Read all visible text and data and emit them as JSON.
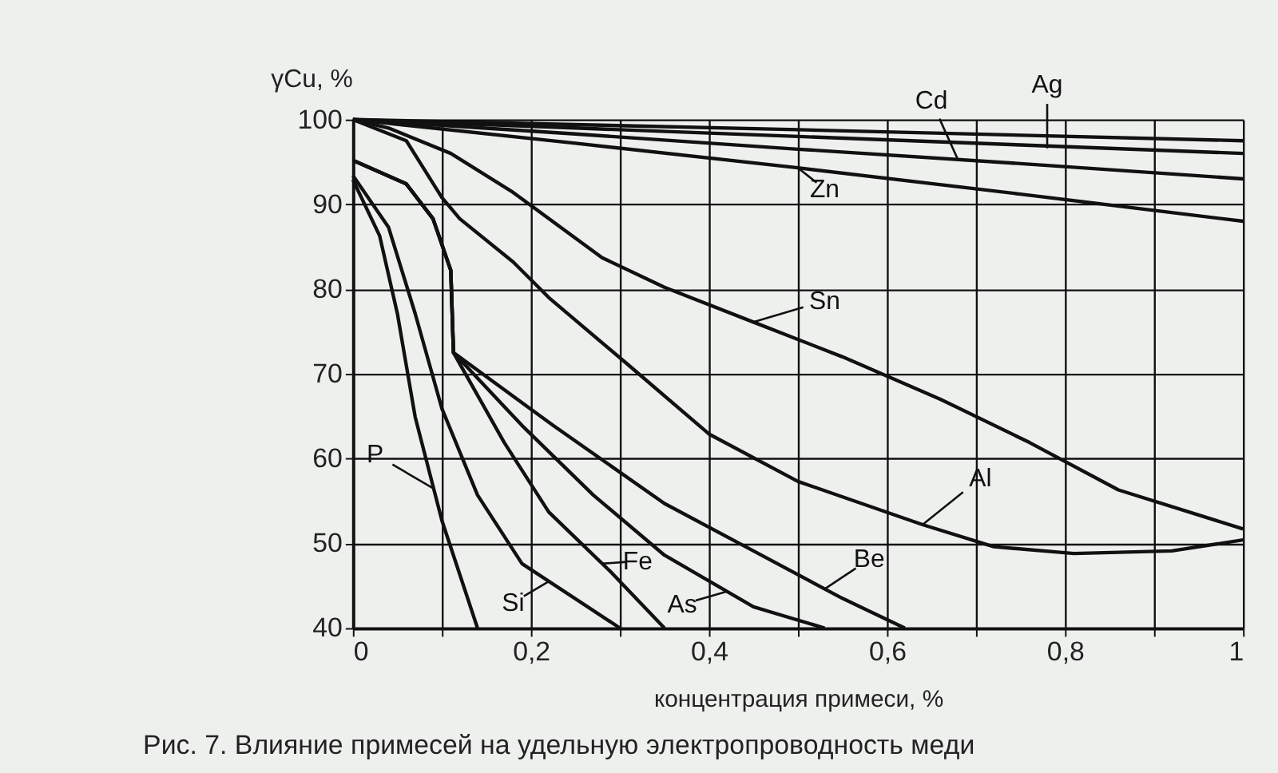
{
  "chart_data": {
    "type": "line",
    "xlabel": "концентрация примеси, %",
    "ylabel": "γCu, %",
    "xlim": [
      0,
      1
    ],
    "ylim": [
      40,
      100
    ],
    "xticks": [
      0,
      {
        "value": 0.1,
        "label": null
      },
      {
        "value": 0.2,
        "label": "0,2"
      },
      {
        "value": 0.3,
        "label": null
      },
      {
        "value": 0.4,
        "label": "0,4"
      },
      {
        "value": 0.5,
        "label": null
      },
      {
        "value": 0.6,
        "label": "0,6"
      },
      {
        "value": 0.7,
        "label": null
      },
      {
        "value": 0.8,
        "label": "0,8"
      },
      {
        "value": 0.9,
        "label": null
      },
      1
    ],
    "yticks": [
      40,
      50,
      60,
      70,
      80,
      90,
      100
    ],
    "grid": true,
    "legend": false,
    "marker": "none",
    "line_style": "solid",
    "series": [
      {
        "color": "#111111",
        "x": [
          0,
          0.5,
          1
        ],
        "values": [
          100,
          98.8,
          97.5
        ]
      },
      {
        "color": "#111111",
        "x": [
          0,
          0.25,
          0.5,
          0.75,
          1
        ],
        "values": [
          100,
          99,
          98,
          97,
          96
        ]
      },
      {
        "color": "#111111",
        "x": [
          0,
          0.25,
          0.5,
          0.75,
          1
        ],
        "values": [
          100,
          98.3,
          96.5,
          94.8,
          93
        ]
      },
      {
        "color": "#111111",
        "x": [
          0,
          0.25,
          0.5,
          0.75,
          1
        ],
        "values": [
          100,
          97.2,
          94.3,
          91.2,
          88
        ]
      },
      {
        "color": "#111111",
        "x": [
          0,
          0.04,
          0.11,
          0.18,
          0.28,
          0.35,
          0.45,
          0.55,
          0.66,
          0.76,
          0.86,
          1
        ],
        "values": [
          100,
          99,
          96,
          91.4,
          83.7,
          80.2,
          76.1,
          72,
          67,
          61.9,
          56.3,
          51.7
        ]
      },
      {
        "color": "#111111",
        "x": [
          0,
          0.06,
          0.1,
          0.12,
          0.18,
          0.22,
          0.31,
          0.4,
          0.5,
          0.64,
          0.72,
          0.81,
          0.92,
          1
        ],
        "values": [
          100,
          97.5,
          90.8,
          88.3,
          83.2,
          79,
          71,
          62.9,
          57.3,
          52.2,
          49.6,
          48.8,
          49.1,
          50.4
        ]
      },
      {
        "color": "#111111",
        "x": [
          0,
          0.06,
          0.09,
          0.11,
          0.113,
          0.225,
          0.35,
          0.45,
          0.55,
          0.62
        ],
        "values": [
          95.2,
          92.4,
          88.3,
          82.2,
          72.5,
          63.9,
          54.7,
          49.1,
          43.5,
          40
        ]
      },
      {
        "color": "#111111",
        "x": [
          0,
          0.06,
          0.09,
          0.11,
          0.113,
          0.19,
          0.27,
          0.35,
          0.45,
          0.53
        ],
        "values": [
          95.2,
          92.4,
          88.3,
          82.2,
          72.5,
          63.9,
          55.7,
          48.6,
          42.5,
          40
        ]
      },
      {
        "color": "#111111",
        "x": [
          0,
          0.06,
          0.09,
          0.11,
          0.113,
          0.17,
          0.22,
          0.29,
          0.35
        ],
        "values": [
          95.2,
          92.4,
          88.3,
          82.2,
          72.5,
          61.9,
          53.7,
          46.6,
          40
        ]
      },
      {
        "color": "#111111",
        "x": [
          0,
          0.04,
          0.07,
          0.1,
          0.14,
          0.19,
          0.3
        ],
        "values": [
          93.4,
          87.3,
          77.1,
          65.9,
          55.7,
          47.6,
          40
        ]
      },
      {
        "color": "#111111",
        "x": [
          0,
          0.03,
          0.05,
          0.07,
          0.1,
          0.14
        ],
        "values": [
          92.9,
          86.3,
          77.1,
          64.9,
          52.7,
          40
        ]
      }
    ],
    "annotations": [
      {
        "text": "Ag",
        "x": 0.78,
        "y": 96.6
      },
      {
        "text": "Cd",
        "x": 0.68,
        "y": 95.2
      },
      {
        "text": "Zn",
        "x": 0.5,
        "y": 94.3
      },
      {
        "text": "Sn",
        "x": 0.45,
        "y": 76.1
      },
      {
        "text": "Al",
        "x": 0.64,
        "y": 52.2
      },
      {
        "text": "Be",
        "x": 0.53,
        "y": 44.6
      },
      {
        "text": "As",
        "x": 0.42,
        "y": 44.3
      },
      {
        "text": "Fe",
        "x": 0.28,
        "y": 47.6
      },
      {
        "text": "Si",
        "x": 0.22,
        "y": 45.5
      },
      {
        "text": "P",
        "x": 0.09,
        "y": 56.5
      },
      "Рис. 7. Влияние примесей на удельную электропроводность меди"
    ]
  }
}
